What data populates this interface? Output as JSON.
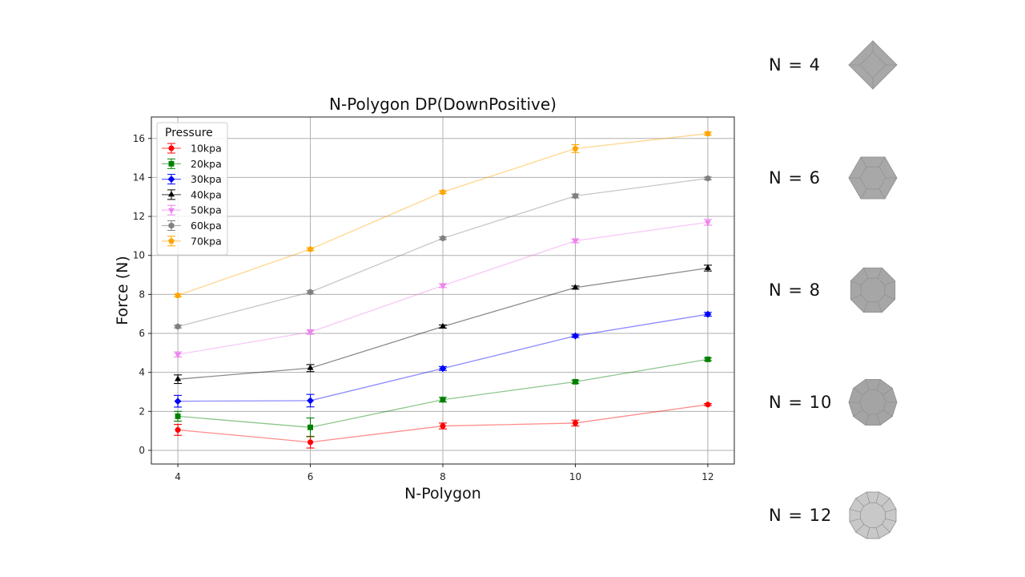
{
  "chart_data": {
    "type": "line",
    "title": "N-Polygon DP(DownPositive)",
    "xlabel": "N-Polygon",
    "ylabel": "Force (N)",
    "x": [
      4,
      6,
      8,
      10,
      12
    ],
    "xticks": [
      4,
      6,
      8,
      10,
      12
    ],
    "yticks": [
      0,
      2,
      4,
      6,
      8,
      10,
      12,
      14,
      16
    ],
    "xlim": [
      3.6,
      12.4
    ],
    "ylim": [
      -0.7,
      17.1
    ],
    "grid": true,
    "legend": {
      "title": "Pressure",
      "placement": "top-left"
    },
    "error_bars": true,
    "series": [
      {
        "name": "10kpa",
        "color": "#ff0000",
        "marker": "circle",
        "values": [
          1.05,
          0.42,
          1.25,
          1.4,
          2.35
        ],
        "errors": [
          0.28,
          0.3,
          0.15,
          0.15,
          0.05
        ]
      },
      {
        "name": "20kpa",
        "color": "#008000",
        "marker": "square",
        "values": [
          1.75,
          1.18,
          2.6,
          3.52,
          4.67
        ],
        "errors": [
          0.25,
          0.48,
          0.12,
          0.08,
          0.07
        ]
      },
      {
        "name": "30kpa",
        "color": "#0000ff",
        "marker": "diamond",
        "values": [
          2.52,
          2.55,
          4.2,
          5.87,
          6.98
        ],
        "errors": [
          0.3,
          0.32,
          0.1,
          0.08,
          0.1
        ]
      },
      {
        "name": "40kpa",
        "color": "#000000",
        "marker": "triangle-up",
        "values": [
          3.65,
          4.22,
          6.35,
          8.35,
          9.35
        ],
        "errors": [
          0.22,
          0.18,
          0.08,
          0.08,
          0.15
        ]
      },
      {
        "name": "50kpa",
        "color": "#ee82ee",
        "marker": "triangle-down",
        "values": [
          4.92,
          6.07,
          8.45,
          10.75,
          11.7
        ],
        "errors": [
          0.13,
          0.12,
          0.1,
          0.1,
          0.15
        ]
      },
      {
        "name": "60kpa",
        "color": "#808080",
        "marker": "hexagon",
        "values": [
          6.35,
          8.12,
          10.88,
          13.05,
          13.95
        ],
        "errors": [
          0.07,
          0.07,
          0.07,
          0.1,
          0.07
        ]
      },
      {
        "name": "70kpa",
        "color": "#ffa500",
        "marker": "pentagon",
        "values": [
          7.95,
          10.32,
          13.25,
          15.48,
          16.25
        ],
        "errors": [
          0.07,
          0.07,
          0.07,
          0.2,
          0.08
        ]
      }
    ]
  },
  "shapes": {
    "items": [
      {
        "label": "N = 4",
        "sides": 4,
        "color": "#a8a8a8"
      },
      {
        "label": "N = 6",
        "sides": 6,
        "color": "#a8a8a8"
      },
      {
        "label": "N = 8",
        "sides": 8,
        "color": "#a6a6a6"
      },
      {
        "label": "N = 10",
        "sides": 10,
        "color": "#a4a4a4"
      },
      {
        "label": "N = 12",
        "sides": 12,
        "color": "#c8c8c8"
      }
    ]
  }
}
